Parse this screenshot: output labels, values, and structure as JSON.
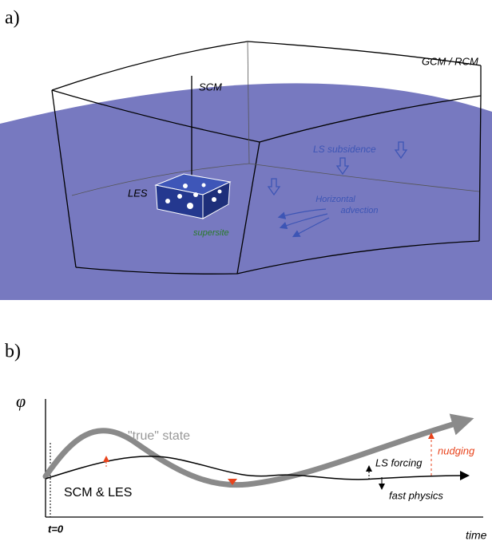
{
  "panel_a": {
    "label": "a)",
    "gcm": "GCM / RCM",
    "scm": "SCM",
    "les": "LES",
    "supersite": "supersite",
    "subsidence": "LS subsidence",
    "advection": [
      "Horizontal",
      "advection"
    ]
  },
  "panel_b": {
    "label": "b)",
    "y_axis": "φ",
    "true_state": "\"true\" state",
    "scm_les": "SCM & LES",
    "ls_forcing": "LS forcing",
    "fast_physics": "fast physics",
    "nudging": "nudging",
    "t0": "t=0",
    "x_axis": "time"
  }
}
